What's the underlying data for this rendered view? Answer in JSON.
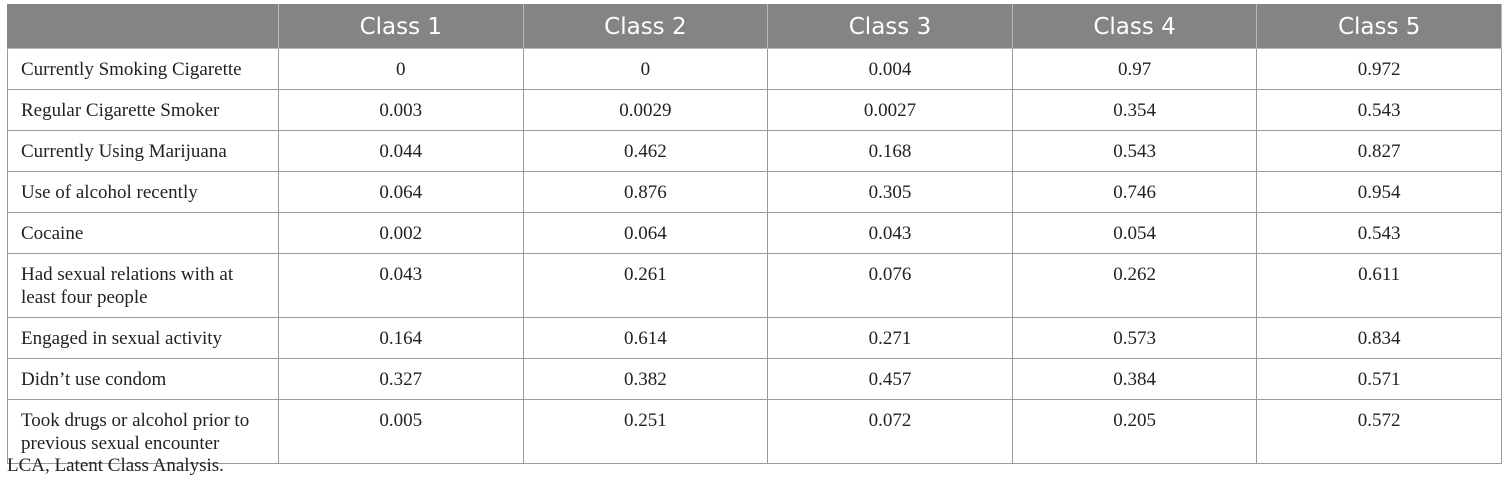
{
  "table": {
    "headers": [
      "",
      "Class 1",
      "Class 2",
      "Class 3",
      "Class 4",
      "Class 5"
    ],
    "rows": [
      {
        "label": "Currently Smoking Cigarette",
        "values": [
          "0",
          "0",
          "0.004",
          "0.97",
          "0.972"
        ]
      },
      {
        "label": "Regular Cigarette Smoker",
        "values": [
          "0.003",
          "0.0029",
          "0.0027",
          "0.354",
          "0.543"
        ]
      },
      {
        "label": "Currently Using Marijuana",
        "values": [
          "0.044",
          "0.462",
          "0.168",
          "0.543",
          "0.827"
        ]
      },
      {
        "label": "Use of alcohol recently",
        "values": [
          "0.064",
          "0.876",
          "0.305",
          "0.746",
          "0.954"
        ]
      },
      {
        "label": "Cocaine",
        "values": [
          "0.002",
          "0.064",
          "0.043",
          "0.054",
          "0.543"
        ]
      },
      {
        "label": "Had sexual relations with at least four people",
        "values": [
          "0.043",
          "0.261",
          "0.076",
          "0.262",
          "0.611"
        ]
      },
      {
        "label": "Engaged in sexual activity",
        "values": [
          "0.164",
          "0.614",
          "0.271",
          "0.573",
          "0.834"
        ]
      },
      {
        "label": "Didn’t use condom",
        "values": [
          "0.327",
          "0.382",
          "0.457",
          "0.384",
          "0.571"
        ]
      },
      {
        "label": "Took drugs or alcohol prior to previous sexual encounter",
        "values": [
          "0.005",
          "0.251",
          "0.072",
          "0.205",
          "0.572"
        ]
      }
    ]
  },
  "footnote": "LCA, Latent Class Analysis."
}
